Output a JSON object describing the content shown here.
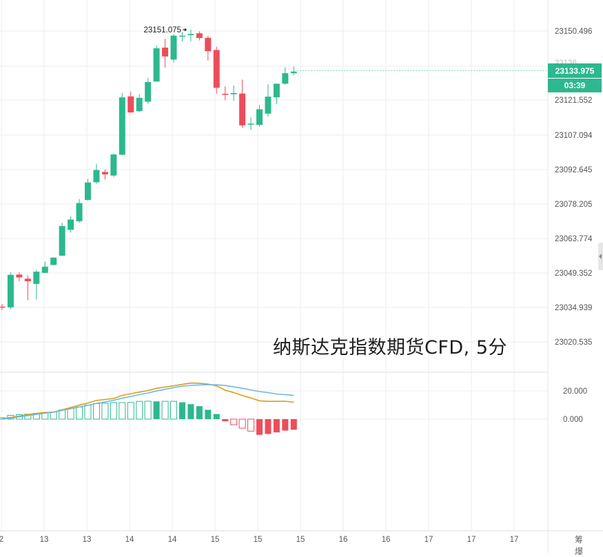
{
  "watermark": "纳斯达克指数期货CFD, 5分",
  "last_price": "23133.975",
  "countdown": "03:39",
  "corner_text": "筹 爆",
  "colors": {
    "up": "#2db88f",
    "down": "#ec4d5c",
    "macd_line": "#6fb7e8",
    "signal_line": "#d4a017",
    "grid": "#ececec"
  },
  "chart_data": {
    "type": "candlestick",
    "title": "",
    "y_ticks": [
      "23150.496",
      "23121.552",
      "23107.094",
      "23092.645",
      "23078.205",
      "23063.774",
      "23049.352",
      "23034.939",
      "23020.535"
    ],
    "x_ticks": [
      "2",
      "13",
      "13",
      "14",
      "14",
      "15",
      "15",
      "15",
      "16",
      "16",
      "17",
      "17",
      "17"
    ],
    "high_marker": "23151.075",
    "ylim": [
      23013,
      23157
    ],
    "candles": [
      {
        "o": 23035.3,
        "h": 23036.4,
        "l": 23033.8,
        "c": 23035.2
      },
      {
        "o": 23035.0,
        "h": 23049.7,
        "l": 23034.2,
        "c": 23048.6
      },
      {
        "o": 23048.7,
        "h": 23049.6,
        "l": 23045.9,
        "c": 23047.5
      },
      {
        "o": 23047.0,
        "h": 23048.4,
        "l": 23038.0,
        "c": 23045.9
      },
      {
        "o": 23044.8,
        "h": 23050.6,
        "l": 23038.2,
        "c": 23049.9
      },
      {
        "o": 23049.4,
        "h": 23054.1,
        "l": 23049.3,
        "c": 23052.0
      },
      {
        "o": 23052.7,
        "h": 23055.7,
        "l": 23052.6,
        "c": 23055.8
      },
      {
        "o": 23056.6,
        "h": 23070.3,
        "l": 23056.5,
        "c": 23069.0
      },
      {
        "o": 23067.4,
        "h": 23073.1,
        "l": 23066.3,
        "c": 23071.7
      },
      {
        "o": 23071.0,
        "h": 23080.3,
        "l": 23070.4,
        "c": 23078.6
      },
      {
        "o": 23079.9,
        "h": 23088.7,
        "l": 23079.6,
        "c": 23087.2
      },
      {
        "o": 23087.3,
        "h": 23095.0,
        "l": 23086.7,
        "c": 23092.4
      },
      {
        "o": 23091.6,
        "h": 23092.6,
        "l": 23088.4,
        "c": 23090.6
      },
      {
        "o": 23090.1,
        "h": 23099.4,
        "l": 23089.5,
        "c": 23098.9
      },
      {
        "o": 23098.8,
        "h": 23124.6,
        "l": 23098.6,
        "c": 23122.8
      },
      {
        "o": 23123.2,
        "h": 23125.2,
        "l": 23116.3,
        "c": 23116.5
      },
      {
        "o": 23117.0,
        "h": 23124.1,
        "l": 23116.7,
        "c": 23122.6
      },
      {
        "o": 23121.0,
        "h": 23130.9,
        "l": 23120.1,
        "c": 23129.2
      },
      {
        "o": 23129.4,
        "h": 23144.5,
        "l": 23129.3,
        "c": 23143.3
      },
      {
        "o": 23143.6,
        "h": 23147.3,
        "l": 23135.2,
        "c": 23139.9
      },
      {
        "o": 23138.6,
        "h": 23149.2,
        "l": 23137.4,
        "c": 23148.6
      },
      {
        "o": 23148.3,
        "h": 23150.2,
        "l": 23146.2,
        "c": 23148.6
      },
      {
        "o": 23148.8,
        "h": 23151.1,
        "l": 23146.2,
        "c": 23149.3
      },
      {
        "o": 23149.6,
        "h": 23150.4,
        "l": 23146.6,
        "c": 23147.6
      },
      {
        "o": 23147.7,
        "h": 23148.6,
        "l": 23138.2,
        "c": 23142.1
      },
      {
        "o": 23142.6,
        "h": 23144.0,
        "l": 23124.3,
        "c": 23126.8
      },
      {
        "o": 23124.3,
        "h": 23127.4,
        "l": 23121.6,
        "c": 23123.9
      },
      {
        "o": 23124.1,
        "h": 23127.8,
        "l": 23121.4,
        "c": 23124.6
      },
      {
        "o": 23124.4,
        "h": 23130.2,
        "l": 23110.0,
        "c": 23111.1
      },
      {
        "o": 23111.4,
        "h": 23114.4,
        "l": 23109.2,
        "c": 23111.8
      },
      {
        "o": 23111.3,
        "h": 23119.6,
        "l": 23110.5,
        "c": 23117.8
      },
      {
        "o": 23116.0,
        "h": 23128.3,
        "l": 23114.8,
        "c": 23123.1
      },
      {
        "o": 23122.8,
        "h": 23128.6,
        "l": 23120.0,
        "c": 23128.5
      },
      {
        "o": 23128.5,
        "h": 23135.4,
        "l": 23128.1,
        "c": 23132.9
      },
      {
        "o": 23132.9,
        "h": 23135.7,
        "l": 23132.0,
        "c": 23133.6
      }
    ],
    "macd": {
      "ylim": [
        -28,
        35
      ],
      "y_ticks": [
        "20.000",
        "0.000"
      ],
      "macd_line": [
        0,
        0.8,
        1.6,
        2.5,
        3.3,
        4.2,
        5.0,
        6.2,
        7.4,
        8.6,
        9.8,
        11.1,
        12.2,
        13.3,
        14.8,
        16.1,
        17.3,
        18.5,
        19.9,
        21.1,
        22.3,
        23.3,
        23.9,
        24.2,
        24.4,
        24.3,
        23.8,
        22.9,
        21.8,
        20.7,
        19.5,
        18.8,
        17.8,
        17.3,
        16.8
      ],
      "signal_line": [
        0.2,
        1.2,
        2.2,
        3.2,
        4.1,
        4.7,
        5.0,
        6.6,
        8.2,
        9.9,
        11.4,
        13.2,
        13.9,
        14.6,
        16.8,
        18.0,
        19.1,
        20.2,
        21.8,
        22.7,
        23.6,
        24.6,
        25.5,
        25.4,
        24.8,
        23.5,
        20.5,
        18.8,
        16.8,
        15.0,
        13.0,
        12.6,
        12.6,
        12.7,
        12.0
      ],
      "histogram": [
        1.0,
        2.7,
        3.3,
        3.5,
        4.1,
        4.7,
        5.0,
        6.5,
        7.7,
        8.6,
        9.9,
        11.0,
        11.3,
        11.7,
        11.7,
        11.8,
        12.6,
        12.7,
        12.6,
        12.6,
        12.6,
        11.9,
        10.6,
        9.2,
        6.6,
        3.6,
        -1.5,
        -4.0,
        -6.4,
        -8.5,
        -11.1,
        -10.5,
        -9.4,
        -8.1,
        -7.5
      ]
    }
  }
}
